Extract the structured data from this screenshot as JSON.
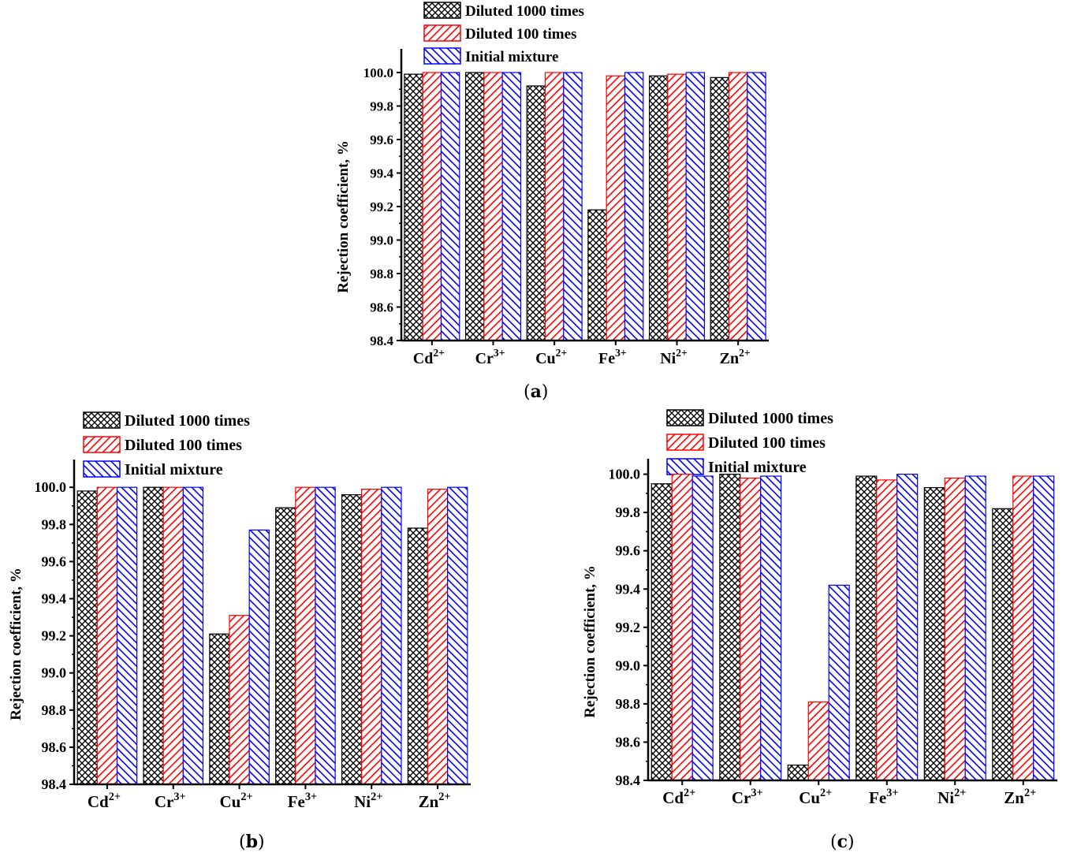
{
  "colors": {
    "series": [
      "#000000",
      "#ff0000",
      "#0000ff"
    ],
    "axis": "#000000"
  },
  "legend": [
    "Diluted 1000 times",
    "Diluted 100 times",
    "Initial mixture"
  ],
  "captions": [
    {
      "open": "(",
      "letter": "a",
      "close": ")"
    },
    {
      "open": "(",
      "letter": "b",
      "close": ")"
    },
    {
      "open": "(",
      "letter": "c",
      "close": ")"
    }
  ],
  "chart_data": [
    {
      "id": "a",
      "type": "bar",
      "ylabel": "Rejection coefficient, %",
      "ylim": [
        98.4,
        100.15
      ],
      "yticks": [
        "98.4",
        "98.6",
        "98.8",
        "99.0",
        "99.2",
        "99.4",
        "99.6",
        "99.8",
        "100.0"
      ],
      "categories": [
        {
          "base": "Cd",
          "sup": "2+"
        },
        {
          "base": "Cr",
          "sup": "3+"
        },
        {
          "base": "Cu",
          "sup": "2+"
        },
        {
          "base": "Fe",
          "sup": "3+"
        },
        {
          "base": "Ni",
          "sup": "2+"
        },
        {
          "base": "Zn",
          "sup": "2+"
        }
      ],
      "series": [
        {
          "name": "Diluted 1000 times",
          "values": [
            99.99,
            100.0,
            99.92,
            99.18,
            99.98,
            99.97
          ]
        },
        {
          "name": "Diluted 100 times",
          "values": [
            100.0,
            100.0,
            100.0,
            99.98,
            99.99,
            100.0
          ]
        },
        {
          "name": "Initial mixture",
          "values": [
            100.0,
            100.0,
            100.0,
            100.0,
            100.0,
            100.0
          ]
        }
      ]
    },
    {
      "id": "b",
      "type": "bar",
      "ylabel": "Rejection coefficient, %",
      "ylim": [
        98.4,
        100.15
      ],
      "yticks": [
        "98.4",
        "98.6",
        "98.8",
        "99.0",
        "99.2",
        "99.4",
        "99.6",
        "99.8",
        "100.0"
      ],
      "categories": [
        {
          "base": "Cd",
          "sup": "2+"
        },
        {
          "base": "Cr",
          "sup": "3+"
        },
        {
          "base": "Cu",
          "sup": "2+"
        },
        {
          "base": "Fe",
          "sup": "3+"
        },
        {
          "base": "Ni",
          "sup": "2+"
        },
        {
          "base": "Zn",
          "sup": "2+"
        }
      ],
      "series": [
        {
          "name": "Diluted 1000 times",
          "values": [
            99.98,
            100.0,
            99.21,
            99.89,
            99.96,
            99.78
          ]
        },
        {
          "name": "Diluted 100 times",
          "values": [
            100.0,
            100.0,
            99.31,
            100.0,
            99.99,
            99.99
          ]
        },
        {
          "name": "Initial mixture",
          "values": [
            100.0,
            100.0,
            99.77,
            100.0,
            100.0,
            100.0
          ]
        }
      ]
    },
    {
      "id": "c",
      "type": "bar",
      "ylabel": "Rejection coefficient, %",
      "ylim": [
        98.4,
        100.08
      ],
      "yticks": [
        "98.4",
        "98.6",
        "98.8",
        "99.0",
        "99.2",
        "99.4",
        "99.6",
        "99.8",
        "100.0"
      ],
      "categories": [
        {
          "base": "Cd",
          "sup": "2+"
        },
        {
          "base": "Cr",
          "sup": "3+"
        },
        {
          "base": "Cu",
          "sup": "2+"
        },
        {
          "base": "Fe",
          "sup": "3+"
        },
        {
          "base": "Ni",
          "sup": "2+"
        },
        {
          "base": "Zn",
          "sup": "2+"
        }
      ],
      "series": [
        {
          "name": "Diluted 1000 times",
          "values": [
            99.95,
            100.0,
            98.48,
            99.99,
            99.93,
            99.82
          ]
        },
        {
          "name": "Diluted 100 times",
          "values": [
            100.0,
            99.98,
            98.81,
            99.97,
            99.98,
            99.99
          ]
        },
        {
          "name": "Initial mixture",
          "values": [
            99.99,
            99.99,
            99.42,
            100.0,
            99.99,
            99.99
          ]
        }
      ]
    }
  ]
}
